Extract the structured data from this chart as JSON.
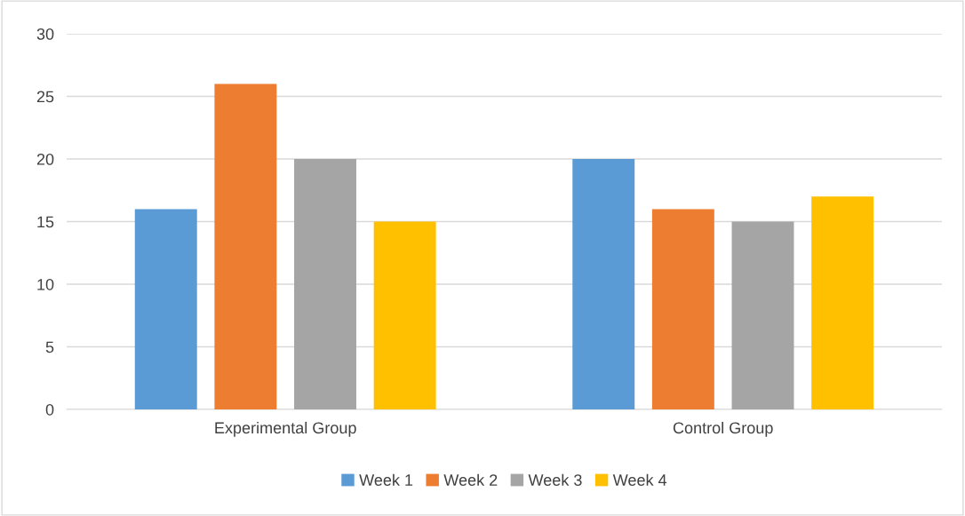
{
  "chart_data": {
    "type": "bar",
    "categories": [
      "Experimental Group",
      "Control Group"
    ],
    "series": [
      {
        "name": "Week 1",
        "color": "#5b9bd5",
        "values": [
          16,
          20
        ]
      },
      {
        "name": "Week 2",
        "color": "#ed7d31",
        "values": [
          26,
          16
        ]
      },
      {
        "name": "Week 3",
        "color": "#a5a5a5",
        "values": [
          20,
          15
        ]
      },
      {
        "name": "Week 4",
        "color": "#ffc000",
        "values": [
          15,
          17
        ]
      }
    ],
    "ylim": [
      0,
      30
    ],
    "yticks": [
      0,
      5,
      10,
      15,
      20,
      25,
      30
    ],
    "grid": "y",
    "legend": "bottom"
  }
}
